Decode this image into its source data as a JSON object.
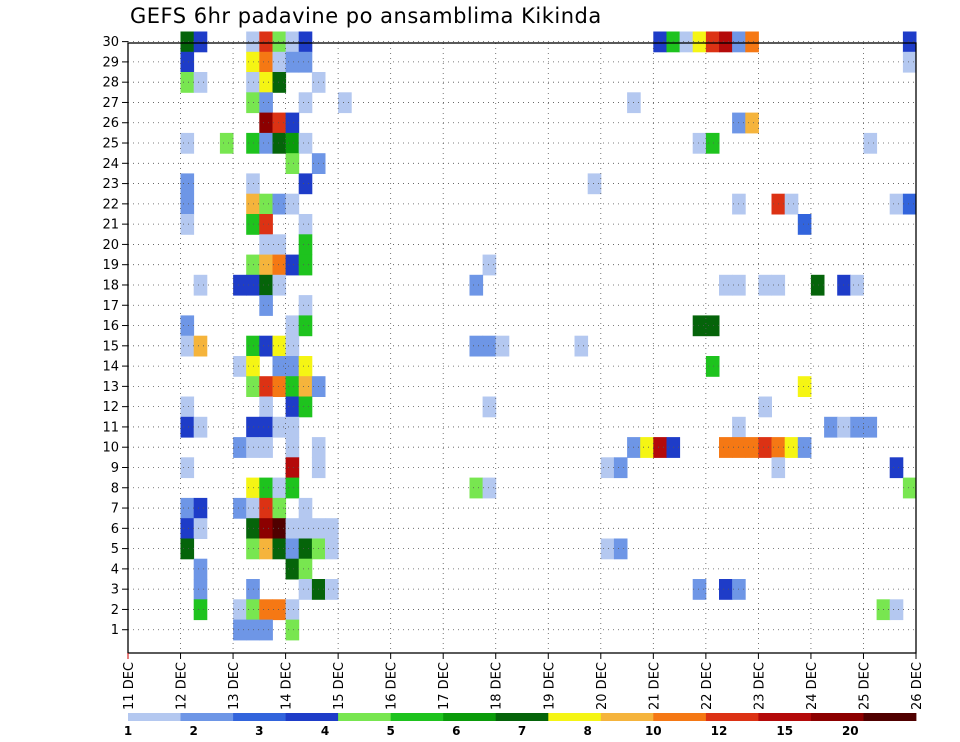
{
  "chart_data": {
    "type": "heatmap",
    "title": "GEFS 6hr padavine po ansamblima Kikinda",
    "x_ticks": [
      "11 DEC",
      "12 DEC",
      "13 DEC",
      "14 DEC",
      "15 DEC",
      "16 DEC",
      "17 DEC",
      "18 DEC",
      "19 DEC",
      "20 DEC",
      "21 DEC",
      "22 DEC",
      "23 DEC",
      "24 DEC",
      "25 DEC",
      "26 DEC"
    ],
    "y_ticks": [
      1,
      2,
      3,
      4,
      5,
      6,
      7,
      8,
      9,
      10,
      11,
      12,
      13,
      14,
      15,
      16,
      17,
      18,
      19,
      20,
      21,
      22,
      23,
      24,
      25,
      26,
      27,
      28,
      29,
      30
    ],
    "y_range": [
      0,
      30
    ],
    "x_range_days": [
      11,
      26
    ],
    "grid": "dotted",
    "colorbar": {
      "boundaries": [
        "1",
        "2",
        "3",
        "4",
        "5",
        "6",
        "7",
        "8",
        "10",
        "12",
        "15",
        "20"
      ],
      "colors": [
        "#b4c8f0",
        "#6e96e6",
        "#3264dc",
        "#1e3cc8",
        "#78e650",
        "#1ec31e",
        "#0a9b0a",
        "#05640a",
        "#f5f514",
        "#f5b43c",
        "#f57814",
        "#dc3214",
        "#b40a0a",
        "#8c0000",
        "#500000"
      ]
    },
    "cells": [
      {
        "m": 30,
        "d": 12.0,
        "c": 7
      },
      {
        "m": 30,
        "d": 12.25,
        "c": 3
      },
      {
        "m": 30,
        "d": 13.25,
        "c": 0
      },
      {
        "m": 30,
        "d": 13.5,
        "c": 11
      },
      {
        "m": 30,
        "d": 13.75,
        "c": 4
      },
      {
        "m": 30,
        "d": 14.0,
        "c": 0
      },
      {
        "m": 30,
        "d": 14.25,
        "c": 3
      },
      {
        "m": 30,
        "d": 21.0,
        "c": 3
      },
      {
        "m": 30,
        "d": 21.25,
        "c": 5
      },
      {
        "m": 30,
        "d": 21.5,
        "c": 0
      },
      {
        "m": 30,
        "d": 21.75,
        "c": 8
      },
      {
        "m": 30,
        "d": 22.0,
        "c": 11
      },
      {
        "m": 30,
        "d": 22.25,
        "c": 12
      },
      {
        "m": 30,
        "d": 22.5,
        "c": 1
      },
      {
        "m": 30,
        "d": 22.75,
        "c": 10
      },
      {
        "m": 30,
        "d": 25.75,
        "c": 3
      },
      {
        "m": 29,
        "d": 12.0,
        "c": 3
      },
      {
        "m": 29,
        "d": 13.25,
        "c": 8
      },
      {
        "m": 29,
        "d": 13.5,
        "c": 10
      },
      {
        "m": 29,
        "d": 13.75,
        "c": 0
      },
      {
        "m": 29,
        "d": 14.0,
        "c": 1
      },
      {
        "m": 29,
        "d": 14.25,
        "c": 1
      },
      {
        "m": 29,
        "d": 25.75,
        "c": 0
      },
      {
        "m": 28,
        "d": 12.0,
        "c": 4
      },
      {
        "m": 28,
        "d": 12.25,
        "c": 0
      },
      {
        "m": 28,
        "d": 13.25,
        "c": 0
      },
      {
        "m": 28,
        "d": 13.5,
        "c": 8
      },
      {
        "m": 28,
        "d": 13.75,
        "c": 7
      },
      {
        "m": 28,
        "d": 14.5,
        "c": 0
      },
      {
        "m": 27,
        "d": 13.25,
        "c": 4
      },
      {
        "m": 27,
        "d": 13.5,
        "c": 1
      },
      {
        "m": 27,
        "d": 14.25,
        "c": 0
      },
      {
        "m": 27,
        "d": 15.0,
        "c": 0
      },
      {
        "m": 27,
        "d": 20.5,
        "c": 0
      },
      {
        "m": 26,
        "d": 13.5,
        "c": 13
      },
      {
        "m": 26,
        "d": 13.75,
        "c": 11
      },
      {
        "m": 26,
        "d": 14.0,
        "c": 3
      },
      {
        "m": 26,
        "d": 22.5,
        "c": 1
      },
      {
        "m": 26,
        "d": 22.75,
        "c": 9
      },
      {
        "m": 25,
        "d": 12.0,
        "c": 0
      },
      {
        "m": 25,
        "d": 12.75,
        "c": 4
      },
      {
        "m": 25,
        "d": 13.25,
        "c": 5
      },
      {
        "m": 25,
        "d": 13.5,
        "c": 1
      },
      {
        "m": 25,
        "d": 13.75,
        "c": 7
      },
      {
        "m": 25,
        "d": 14.0,
        "c": 6
      },
      {
        "m": 25,
        "d": 14.25,
        "c": 0
      },
      {
        "m": 25,
        "d": 21.75,
        "c": 0
      },
      {
        "m": 25,
        "d": 22.0,
        "c": 5
      },
      {
        "m": 25,
        "d": 25.0,
        "c": 0
      },
      {
        "m": 24,
        "d": 14.0,
        "c": 4
      },
      {
        "m": 24,
        "d": 14.5,
        "c": 1
      },
      {
        "m": 23,
        "d": 12.0,
        "c": 1
      },
      {
        "m": 23,
        "d": 13.25,
        "c": 0
      },
      {
        "m": 23,
        "d": 14.25,
        "c": 3
      },
      {
        "m": 23,
        "d": 19.75,
        "c": 0
      },
      {
        "m": 22,
        "d": 12.0,
        "c": 1
      },
      {
        "m": 22,
        "d": 13.25,
        "c": 9
      },
      {
        "m": 22,
        "d": 13.5,
        "c": 4
      },
      {
        "m": 22,
        "d": 13.75,
        "c": 1
      },
      {
        "m": 22,
        "d": 14.0,
        "c": 0
      },
      {
        "m": 22,
        "d": 22.5,
        "c": 0
      },
      {
        "m": 22,
        "d": 23.25,
        "c": 11
      },
      {
        "m": 22,
        "d": 23.5,
        "c": 0
      },
      {
        "m": 22,
        "d": 25.5,
        "c": 0
      },
      {
        "m": 22,
        "d": 25.75,
        "c": 2
      },
      {
        "m": 21,
        "d": 12.0,
        "c": 0
      },
      {
        "m": 21,
        "d": 13.25,
        "c": 5
      },
      {
        "m": 21,
        "d": 13.5,
        "c": 11
      },
      {
        "m": 21,
        "d": 14.25,
        "c": 0
      },
      {
        "m": 21,
        "d": 23.75,
        "c": 2
      },
      {
        "m": 20,
        "d": 13.5,
        "c": 0
      },
      {
        "m": 20,
        "d": 13.75,
        "c": 0
      },
      {
        "m": 20,
        "d": 14.25,
        "c": 5
      },
      {
        "m": 19,
        "d": 13.25,
        "c": 4
      },
      {
        "m": 19,
        "d": 13.5,
        "c": 9
      },
      {
        "m": 19,
        "d": 13.75,
        "c": 10
      },
      {
        "m": 19,
        "d": 14.0,
        "c": 3
      },
      {
        "m": 19,
        "d": 14.25,
        "c": 5
      },
      {
        "m": 19,
        "d": 17.75,
        "c": 0
      },
      {
        "m": 18,
        "d": 12.25,
        "c": 0
      },
      {
        "m": 18,
        "d": 13.0,
        "c": 3
      },
      {
        "m": 18,
        "d": 13.25,
        "c": 3
      },
      {
        "m": 18,
        "d": 13.5,
        "c": 7
      },
      {
        "m": 18,
        "d": 13.75,
        "c": 0
      },
      {
        "m": 18,
        "d": 17.5,
        "c": 1
      },
      {
        "m": 18,
        "d": 22.25,
        "c": 0
      },
      {
        "m": 18,
        "d": 22.5,
        "c": 0
      },
      {
        "m": 18,
        "d": 23.0,
        "c": 0
      },
      {
        "m": 18,
        "d": 23.25,
        "c": 0
      },
      {
        "m": 18,
        "d": 24.0,
        "c": 7
      },
      {
        "m": 18,
        "d": 24.5,
        "c": 3
      },
      {
        "m": 18,
        "d": 24.75,
        "c": 0
      },
      {
        "m": 17,
        "d": 13.5,
        "c": 1
      },
      {
        "m": 17,
        "d": 14.25,
        "c": 0
      },
      {
        "m": 16,
        "d": 12.0,
        "c": 1
      },
      {
        "m": 16,
        "d": 14.0,
        "c": 0
      },
      {
        "m": 16,
        "d": 14.25,
        "c": 5
      },
      {
        "m": 16,
        "d": 21.75,
        "c": 7
      },
      {
        "m": 16,
        "d": 22.0,
        "c": 7
      },
      {
        "m": 15,
        "d": 12.0,
        "c": 0
      },
      {
        "m": 15,
        "d": 12.25,
        "c": 9
      },
      {
        "m": 15,
        "d": 13.25,
        "c": 5
      },
      {
        "m": 15,
        "d": 13.5,
        "c": 3
      },
      {
        "m": 15,
        "d": 13.75,
        "c": 8
      },
      {
        "m": 15,
        "d": 14.0,
        "c": 0
      },
      {
        "m": 15,
        "d": 17.5,
        "c": 1
      },
      {
        "m": 15,
        "d": 17.75,
        "c": 1
      },
      {
        "m": 15,
        "d": 18.0,
        "c": 0
      },
      {
        "m": 15,
        "d": 19.5,
        "c": 0
      },
      {
        "m": 14,
        "d": 13.0,
        "c": 0
      },
      {
        "m": 14,
        "d": 13.25,
        "c": 8
      },
      {
        "m": 14,
        "d": 13.75,
        "c": 1
      },
      {
        "m": 14,
        "d": 14.0,
        "c": 1
      },
      {
        "m": 14,
        "d": 14.25,
        "c": 8
      },
      {
        "m": 14,
        "d": 22.0,
        "c": 5
      },
      {
        "m": 13,
        "d": 13.25,
        "c": 4
      },
      {
        "m": 13,
        "d": 13.5,
        "c": 11
      },
      {
        "m": 13,
        "d": 13.75,
        "c": 10
      },
      {
        "m": 13,
        "d": 14.0,
        "c": 5
      },
      {
        "m": 13,
        "d": 14.25,
        "c": 9
      },
      {
        "m": 13,
        "d": 14.5,
        "c": 1
      },
      {
        "m": 13,
        "d": 23.75,
        "c": 8
      },
      {
        "m": 12,
        "d": 12.0,
        "c": 0
      },
      {
        "m": 12,
        "d": 13.5,
        "c": 0
      },
      {
        "m": 12,
        "d": 14.0,
        "c": 3
      },
      {
        "m": 12,
        "d": 14.25,
        "c": 5
      },
      {
        "m": 12,
        "d": 17.75,
        "c": 0
      },
      {
        "m": 12,
        "d": 23.0,
        "c": 0
      },
      {
        "m": 11,
        "d": 12.0,
        "c": 3
      },
      {
        "m": 11,
        "d": 12.25,
        "c": 0
      },
      {
        "m": 11,
        "d": 13.25,
        "c": 3
      },
      {
        "m": 11,
        "d": 13.5,
        "c": 3
      },
      {
        "m": 11,
        "d": 13.75,
        "c": 0
      },
      {
        "m": 11,
        "d": 14.0,
        "c": 0
      },
      {
        "m": 11,
        "d": 22.5,
        "c": 0
      },
      {
        "m": 11,
        "d": 24.25,
        "c": 1
      },
      {
        "m": 11,
        "d": 24.5,
        "c": 0
      },
      {
        "m": 11,
        "d": 24.75,
        "c": 1
      },
      {
        "m": 11,
        "d": 25.0,
        "c": 1
      },
      {
        "m": 10,
        "d": 13.0,
        "c": 1
      },
      {
        "m": 10,
        "d": 13.25,
        "c": 0
      },
      {
        "m": 10,
        "d": 13.5,
        "c": 0
      },
      {
        "m": 10,
        "d": 14.0,
        "c": 0
      },
      {
        "m": 10,
        "d": 14.5,
        "c": 0
      },
      {
        "m": 10,
        "d": 20.5,
        "c": 1
      },
      {
        "m": 10,
        "d": 20.75,
        "c": 8
      },
      {
        "m": 10,
        "d": 21.0,
        "c": 12
      },
      {
        "m": 10,
        "d": 21.25,
        "c": 3
      },
      {
        "m": 10,
        "d": 22.25,
        "c": 10
      },
      {
        "m": 10,
        "d": 22.5,
        "c": 10
      },
      {
        "m": 10,
        "d": 22.75,
        "c": 10
      },
      {
        "m": 10,
        "d": 23.0,
        "c": 11
      },
      {
        "m": 10,
        "d": 23.25,
        "c": 10
      },
      {
        "m": 10,
        "d": 23.5,
        "c": 8
      },
      {
        "m": 10,
        "d": 23.75,
        "c": 1
      },
      {
        "m": 9,
        "d": 12.0,
        "c": 0
      },
      {
        "m": 9,
        "d": 14.0,
        "c": 12
      },
      {
        "m": 9,
        "d": 14.5,
        "c": 0
      },
      {
        "m": 9,
        "d": 20.0,
        "c": 0
      },
      {
        "m": 9,
        "d": 20.25,
        "c": 1
      },
      {
        "m": 9,
        "d": 23.25,
        "c": 0
      },
      {
        "m": 9,
        "d": 25.5,
        "c": 3
      },
      {
        "m": 8,
        "d": 13.25,
        "c": 8
      },
      {
        "m": 8,
        "d": 13.5,
        "c": 5
      },
      {
        "m": 8,
        "d": 13.75,
        "c": 0
      },
      {
        "m": 8,
        "d": 14.0,
        "c": 5
      },
      {
        "m": 8,
        "d": 17.5,
        "c": 4
      },
      {
        "m": 8,
        "d": 17.75,
        "c": 0
      },
      {
        "m": 8,
        "d": 25.75,
        "c": 4
      },
      {
        "m": 7,
        "d": 12.0,
        "c": 1
      },
      {
        "m": 7,
        "d": 12.25,
        "c": 3
      },
      {
        "m": 7,
        "d": 13.0,
        "c": 1
      },
      {
        "m": 7,
        "d": 13.25,
        "c": 0
      },
      {
        "m": 7,
        "d": 13.5,
        "c": 11
      },
      {
        "m": 7,
        "d": 13.75,
        "c": 4
      },
      {
        "m": 7,
        "d": 14.25,
        "c": 0
      },
      {
        "m": 6,
        "d": 12.0,
        "c": 3
      },
      {
        "m": 6,
        "d": 12.25,
        "c": 0
      },
      {
        "m": 6,
        "d": 13.25,
        "c": 7
      },
      {
        "m": 6,
        "d": 13.5,
        "c": 13
      },
      {
        "m": 6,
        "d": 13.75,
        "c": 14
      },
      {
        "m": 6,
        "d": 14.0,
        "c": 0
      },
      {
        "m": 6,
        "d": 14.25,
        "c": 0
      },
      {
        "m": 6,
        "d": 14.5,
        "c": 0
      },
      {
        "m": 6,
        "d": 14.75,
        "c": 0
      },
      {
        "m": 5,
        "d": 12.0,
        "c": 7
      },
      {
        "m": 5,
        "d": 13.25,
        "c": 4
      },
      {
        "m": 5,
        "d": 13.5,
        "c": 9
      },
      {
        "m": 5,
        "d": 13.75,
        "c": 7
      },
      {
        "m": 5,
        "d": 14.0,
        "c": 1
      },
      {
        "m": 5,
        "d": 14.25,
        "c": 7
      },
      {
        "m": 5,
        "d": 14.5,
        "c": 4
      },
      {
        "m": 5,
        "d": 14.75,
        "c": 0
      },
      {
        "m": 5,
        "d": 20.0,
        "c": 0
      },
      {
        "m": 5,
        "d": 20.25,
        "c": 1
      },
      {
        "m": 4,
        "d": 12.25,
        "c": 1
      },
      {
        "m": 4,
        "d": 14.0,
        "c": 7
      },
      {
        "m": 4,
        "d": 14.25,
        "c": 4
      },
      {
        "m": 3,
        "d": 12.25,
        "c": 1
      },
      {
        "m": 3,
        "d": 13.25,
        "c": 1
      },
      {
        "m": 3,
        "d": 14.25,
        "c": 0
      },
      {
        "m": 3,
        "d": 14.5,
        "c": 7
      },
      {
        "m": 3,
        "d": 14.75,
        "c": 0
      },
      {
        "m": 3,
        "d": 21.75,
        "c": 1
      },
      {
        "m": 3,
        "d": 22.25,
        "c": 3
      },
      {
        "m": 3,
        "d": 22.5,
        "c": 1
      },
      {
        "m": 2,
        "d": 12.25,
        "c": 5
      },
      {
        "m": 2,
        "d": 13.0,
        "c": 0
      },
      {
        "m": 2,
        "d": 13.25,
        "c": 4
      },
      {
        "m": 2,
        "d": 13.5,
        "c": 10
      },
      {
        "m": 2,
        "d": 13.75,
        "c": 10
      },
      {
        "m": 2,
        "d": 14.0,
        "c": 0
      },
      {
        "m": 2,
        "d": 25.25,
        "c": 4
      },
      {
        "m": 2,
        "d": 25.5,
        "c": 0
      },
      {
        "m": 1,
        "d": 13.0,
        "c": 1
      },
      {
        "m": 1,
        "d": 13.25,
        "c": 1
      },
      {
        "m": 1,
        "d": 13.5,
        "c": 1
      },
      {
        "m": 1,
        "d": 14.0,
        "c": 4
      }
    ]
  }
}
